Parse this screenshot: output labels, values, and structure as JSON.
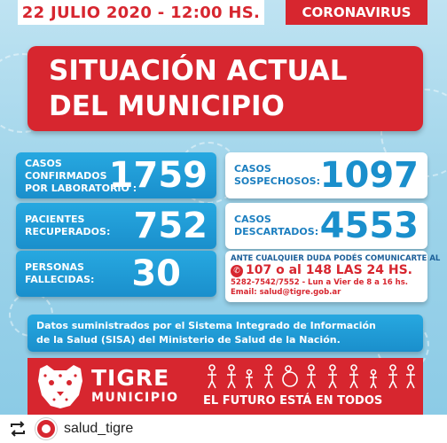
{
  "header": {
    "date": "22 JULIO 2020 - 12:00 HS.",
    "topic": "CORONAVIRUS"
  },
  "title": {
    "line1": "SITUACIÓN ACTUAL",
    "line2": "DEL MUNICIPIO"
  },
  "stats": {
    "confirmed": {
      "label1": "CASOS",
      "label2": "CONFIRMADOS",
      "label3": "POR LABORATORIO :",
      "value": "1759"
    },
    "recovered": {
      "label1": "PACIENTES",
      "label2": "RECUPERADOS:",
      "value": "752"
    },
    "deceased": {
      "label1": "PERSONAS",
      "label2": "FALLECIDAS:",
      "value": "30"
    },
    "suspected": {
      "label1": "CASOS",
      "label2": "SOSPECHOSOS:",
      "value": "1097"
    },
    "discarded": {
      "label1": "CASOS",
      "label2": "DESCARTADOS:",
      "value": "4553"
    }
  },
  "contact": {
    "line1": "ANTE CUALQUIER DUDA PODÉS COMUNICARTE AL",
    "phones": "107 o al 148 LAS 24 HS.",
    "line3": "5282-7542/7552 - Lun a Vier de 8 a 16 hs.",
    "email": "Email: salud@tigre.gob.ar"
  },
  "info": {
    "line1": "Datos suministrados por el Sistema Integrado de Información",
    "line2": "de la Salud (SISA) del Ministerio de Salud de la Nación."
  },
  "footer": {
    "brand_name": "TIGRE",
    "brand_sub": "MUNICIPIO",
    "slogan_prefix": "EL FUTURO ESTÁ EN ",
    "slogan_bold": "TODOS"
  },
  "instagram": {
    "username": "salud_tigre"
  },
  "colors": {
    "red": "#d7262f",
    "blue": "#1a8fcc",
    "light_blue": "#9fd4ea"
  }
}
